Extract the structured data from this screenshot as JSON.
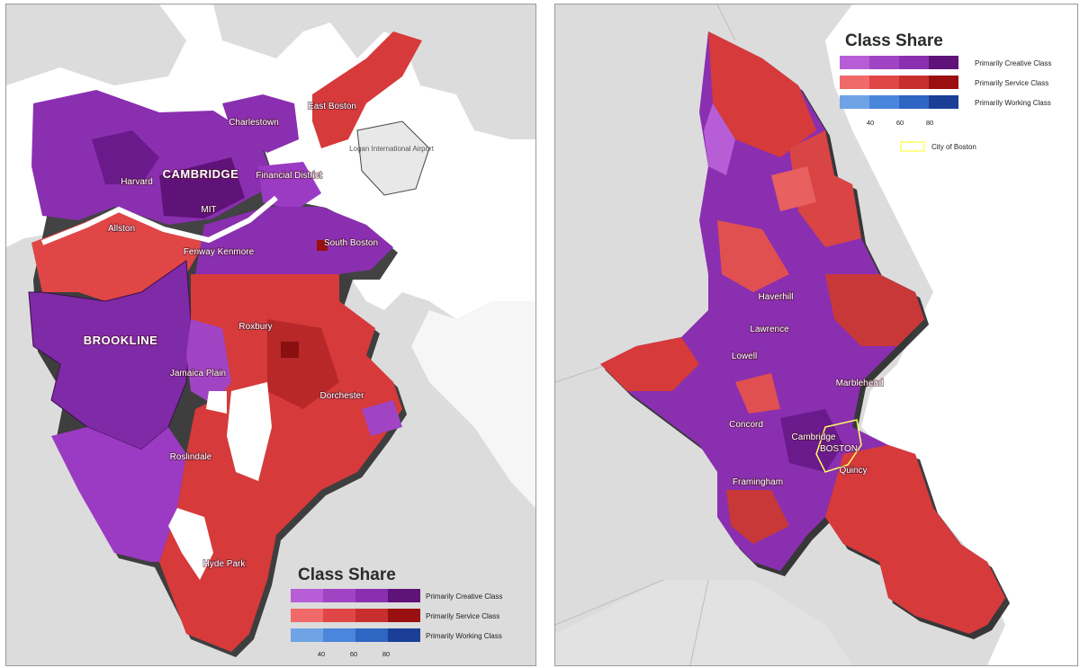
{
  "left_map": {
    "neighborhoods": [
      "Charlestown",
      "East Boston",
      "Logan International Airport",
      "CAMBRIDGE",
      "Harvard",
      "MIT",
      "Financial District",
      "Allston",
      "Fenway Kenmore",
      "South Boston",
      "Roxbury",
      "BROOKLINE",
      "Jamaica Plain",
      "Dorchester",
      "Roslindale",
      "Hyde Park"
    ],
    "legend": {
      "title": "Class Share",
      "classes": [
        "Primarily Creative Class",
        "Primarily Service Class",
        "Primarily Working Class"
      ],
      "ticks": [
        "40",
        "60",
        "80"
      ]
    }
  },
  "right_map": {
    "places": [
      "Haverhill",
      "Lawrence",
      "Lowell",
      "Marblehead",
      "Concord",
      "Cambridge",
      "BOSTON",
      "Quincy",
      "Framingham"
    ],
    "legend": {
      "title": "Class Share",
      "classes": [
        "Primarily Creative Class",
        "Primarily Service Class",
        "Primarily Working Class"
      ],
      "ticks": [
        "40",
        "60",
        "80"
      ],
      "boundary_label": "City of Boston"
    }
  },
  "colors": {
    "creative": [
      "#b75ed6",
      "#a044c4",
      "#8a2fb0",
      "#5f1278"
    ],
    "service": [
      "#f06a6a",
      "#e04646",
      "#c92e2e",
      "#9a1010"
    ],
    "working": [
      "#6fa3e6",
      "#4a86dc",
      "#2f66c4",
      "#1b3f97"
    ],
    "water": "#ffffff",
    "land": "#d9d9d9",
    "boundary": "#ffff66"
  }
}
